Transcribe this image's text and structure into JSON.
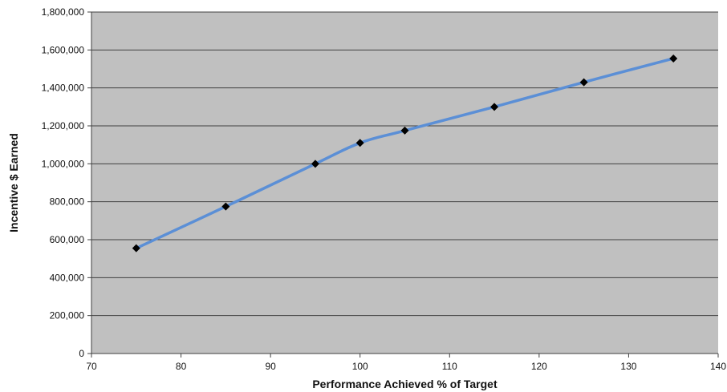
{
  "chart_data": {
    "type": "line",
    "title": "",
    "xlabel": "Performance Achieved % of Target",
    "ylabel": "Incentive $ Earned",
    "xlim": [
      70,
      140
    ],
    "ylim": [
      0,
      1800000
    ],
    "x_ticks": [
      70,
      80,
      90,
      100,
      110,
      120,
      130,
      140
    ],
    "x_tick_labels": [
      "70",
      "80",
      "90",
      "100",
      "110",
      "120",
      "130",
      "140"
    ],
    "y_ticks": [
      0,
      200000,
      400000,
      600000,
      800000,
      1000000,
      1200000,
      1400000,
      1600000,
      1800000
    ],
    "y_tick_labels": [
      "0",
      "200,000",
      "400,000",
      "600,000",
      "800,000",
      "1,000,000",
      "1,200,000",
      "1,400,000",
      "1,600,000",
      "1,800,000"
    ],
    "grid": "horizontal",
    "legend": "none",
    "series": [
      {
        "x": [
          75,
          85,
          95,
          100,
          105,
          115,
          125,
          135
        ],
        "y": [
          555000,
          775000,
          1000000,
          1110000,
          1175000,
          1300000,
          1430000,
          1555000
        ],
        "line_color": "#5b8fd6",
        "marker": "diamond",
        "marker_color": "#000000"
      }
    ],
    "plot_background": "#c0c0c0",
    "grid_color": "#404040"
  }
}
